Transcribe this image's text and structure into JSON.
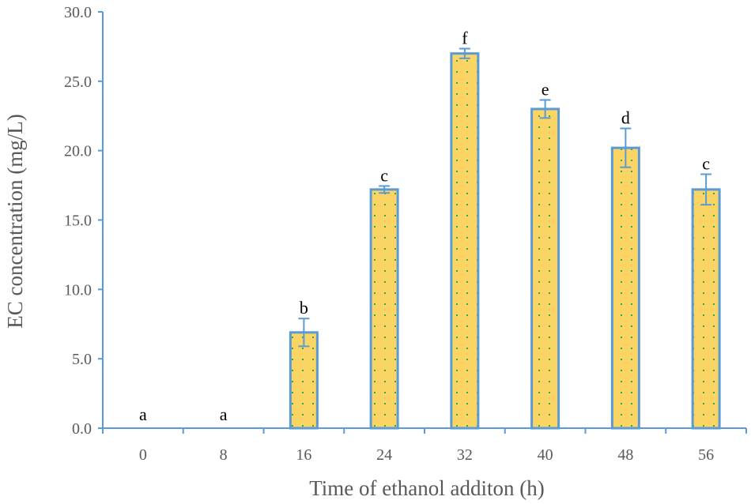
{
  "chart_data": {
    "type": "bar",
    "title": "",
    "xlabel": "Time of ethanol additon (h)",
    "ylabel": "EC concentration (mg/L)",
    "categories": [
      "0",
      "8",
      "16",
      "24",
      "32",
      "40",
      "48",
      "56"
    ],
    "values": [
      0,
      0,
      6.9,
      17.2,
      27.0,
      23.0,
      20.2,
      17.2
    ],
    "errors": [
      0,
      0,
      1.0,
      0.25,
      0.35,
      0.65,
      1.4,
      1.1
    ],
    "significance": [
      "a",
      "a",
      "b",
      "c",
      "f",
      "e",
      "d",
      "c"
    ],
    "ylim": [
      0,
      30
    ],
    "yticks": [
      "0.0",
      "5.0",
      "10.0",
      "15.0",
      "20.0",
      "25.0",
      "30.0"
    ],
    "grid": false,
    "colors": {
      "bar_fill": "#fbd564",
      "bar_dots": "#2fa84f",
      "bar_border": "#5b9bd5",
      "axis": "#5b9bd5",
      "error_bar": "#5b9bd5",
      "text": "#595959"
    }
  }
}
